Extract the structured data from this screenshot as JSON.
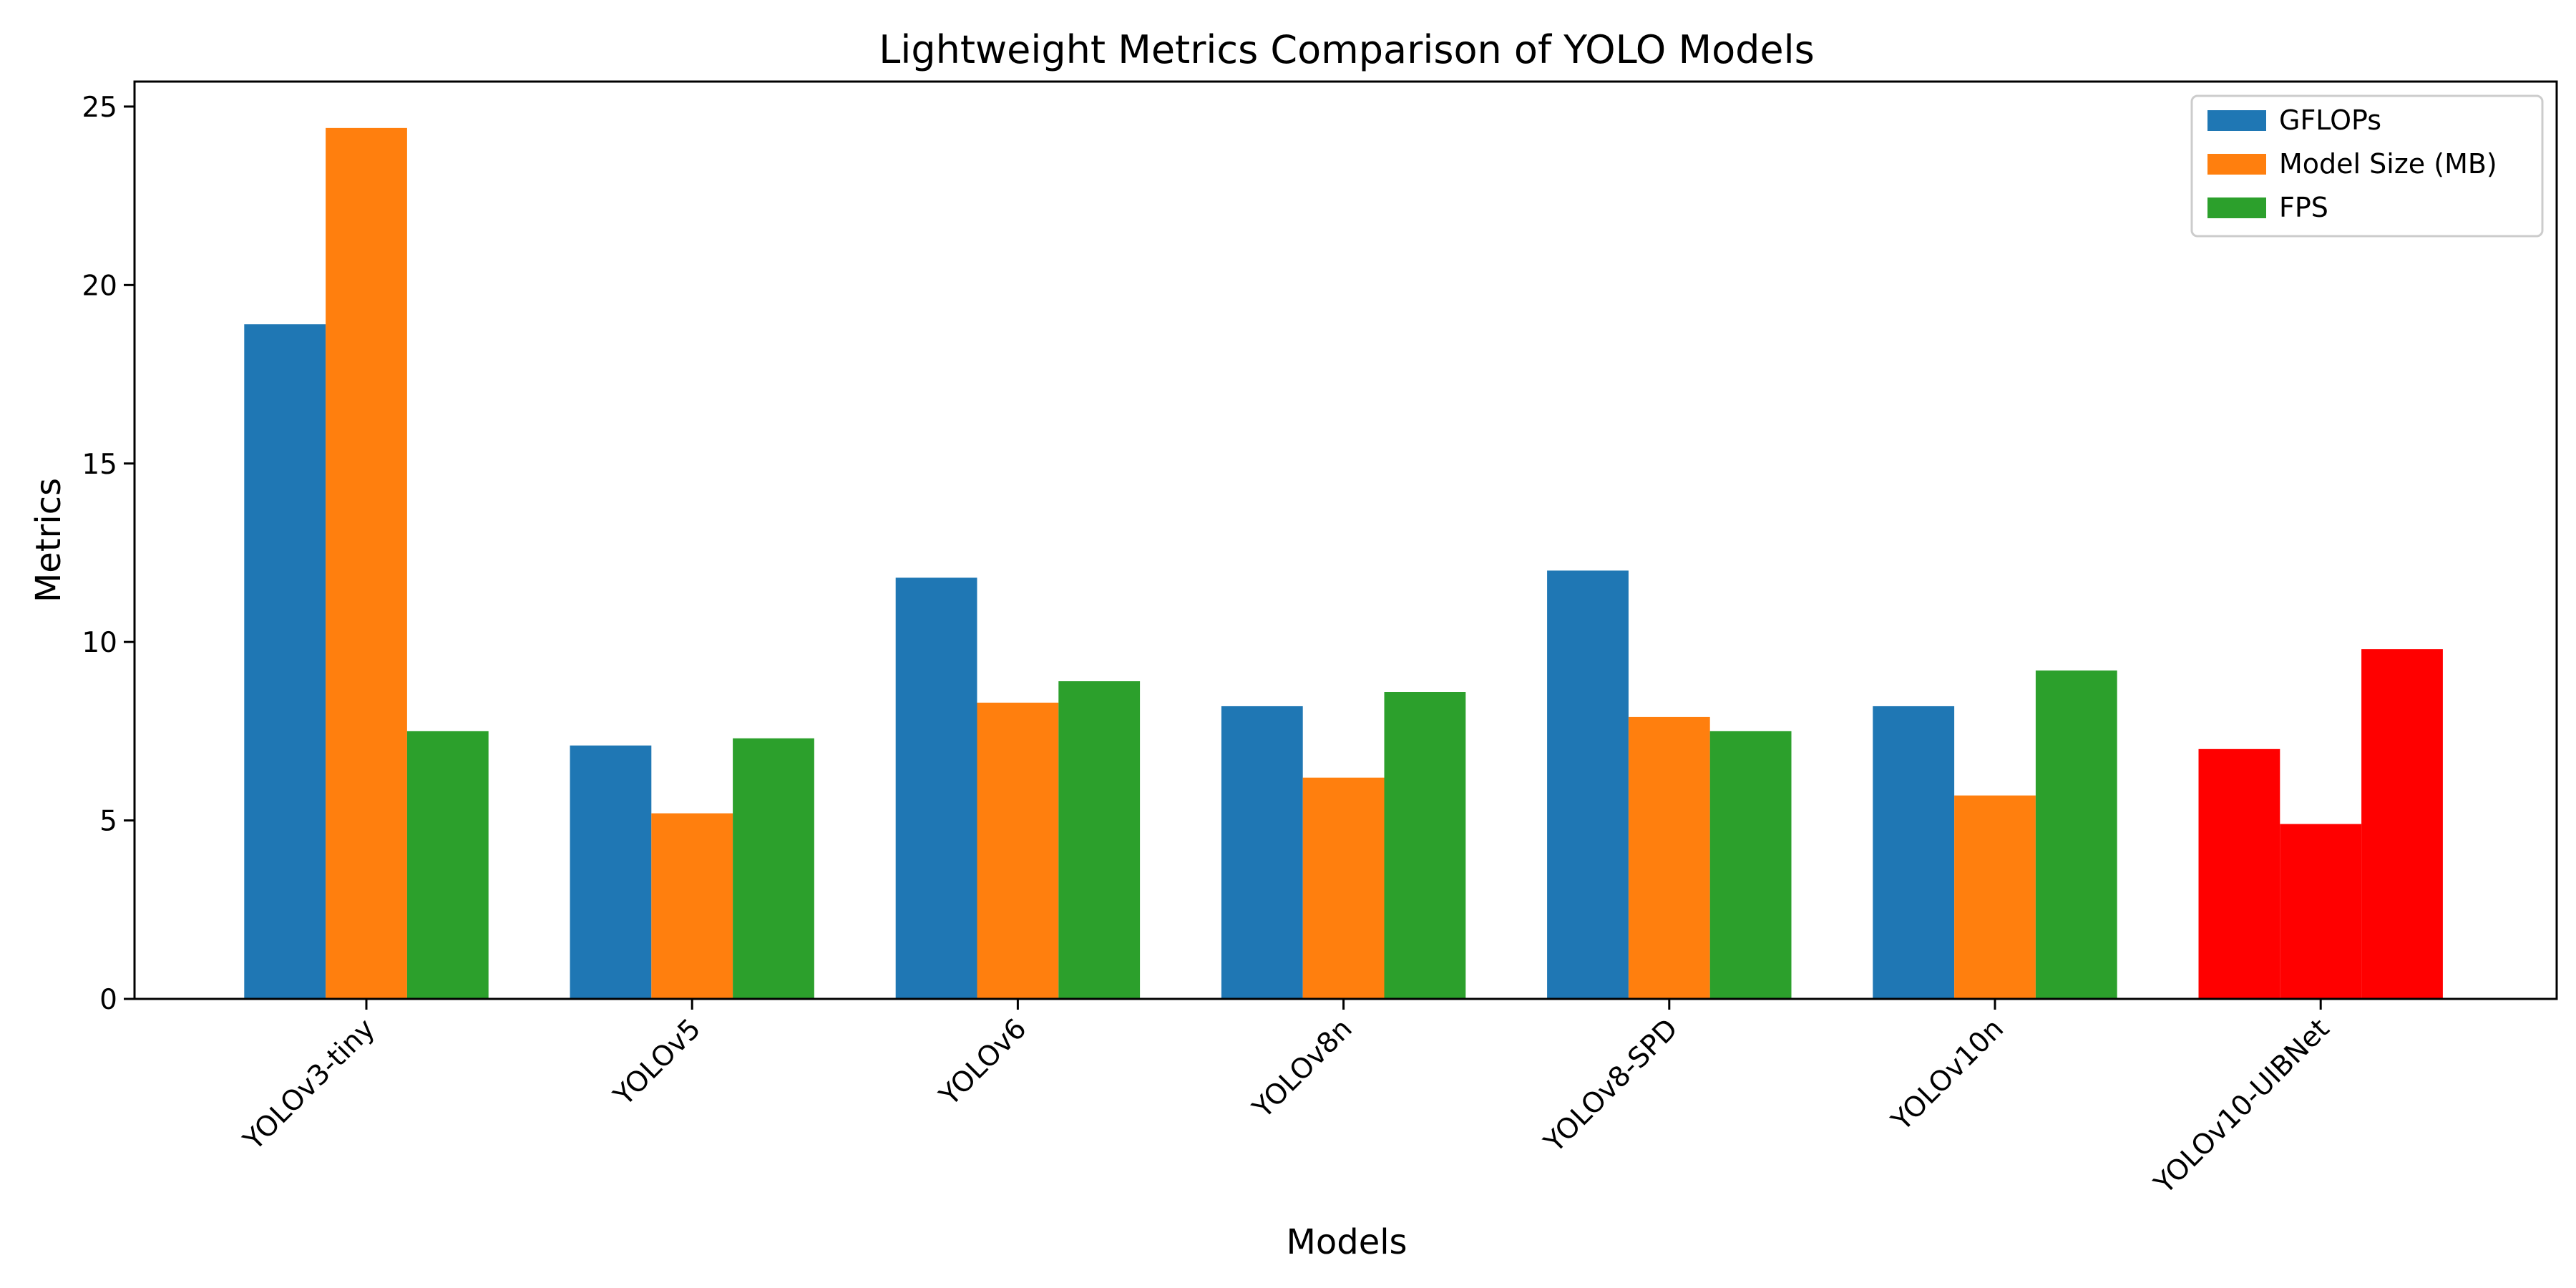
{
  "chart_data": {
    "type": "bar",
    "title": "Lightweight Metrics Comparison of YOLO Models",
    "xlabel": "Models",
    "ylabel": "Metrics",
    "categories": [
      "YOLOv3-tiny",
      "YOLOv5",
      "YOLOv6",
      "YOLOv8n",
      "YOLOv8-SPD",
      "YOLOv10n",
      "YOLOv10-UIBNet"
    ],
    "series": [
      {
        "name": "GFLOPs",
        "color": "#1f77b4",
        "values": [
          18.9,
          7.1,
          11.8,
          8.2,
          12.0,
          8.2,
          7.0
        ]
      },
      {
        "name": "Model Size (MB)",
        "color": "#ff7f0e",
        "values": [
          24.4,
          5.2,
          8.3,
          6.2,
          7.9,
          5.7,
          4.9
        ]
      },
      {
        "name": "FPS",
        "color": "#2ca02c",
        "values": [
          7.5,
          7.3,
          8.9,
          8.6,
          7.5,
          9.2,
          9.8
        ]
      }
    ],
    "highlight": {
      "category": "YOLOv10-UIBNet",
      "color": "#ff0000"
    },
    "ylim": [
      0,
      25.7
    ],
    "yticks": [
      0,
      5,
      10,
      15,
      20,
      25
    ],
    "grid": false,
    "legend_position": "top-right"
  }
}
